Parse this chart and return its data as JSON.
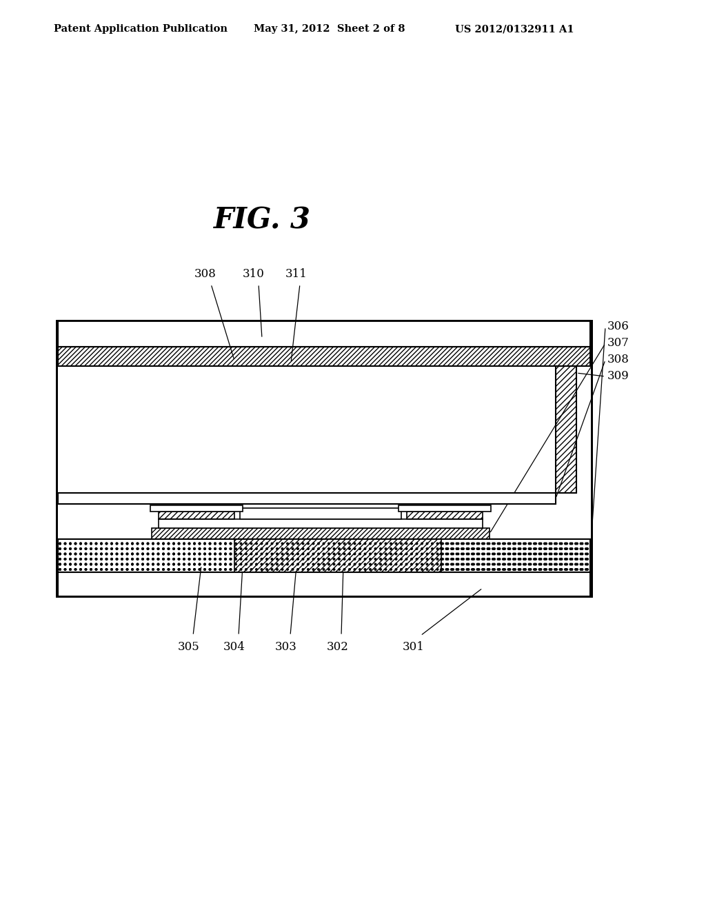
{
  "bg_color": "#ffffff",
  "header_left": "Patent Application Publication",
  "header_mid": "May 31, 2012  Sheet 2 of 8",
  "header_right": "US 2012/0132911 A1",
  "fig_label": "FIG. 3",
  "labels_top": [
    "308",
    "310",
    "311"
  ],
  "labels_right": [
    "309",
    "308",
    "307",
    "306"
  ],
  "labels_bottom": [
    "305",
    "304",
    "303",
    "302",
    "301"
  ],
  "OX1": 82,
  "OX2": 858,
  "OY1": 455,
  "OY2": 855
}
